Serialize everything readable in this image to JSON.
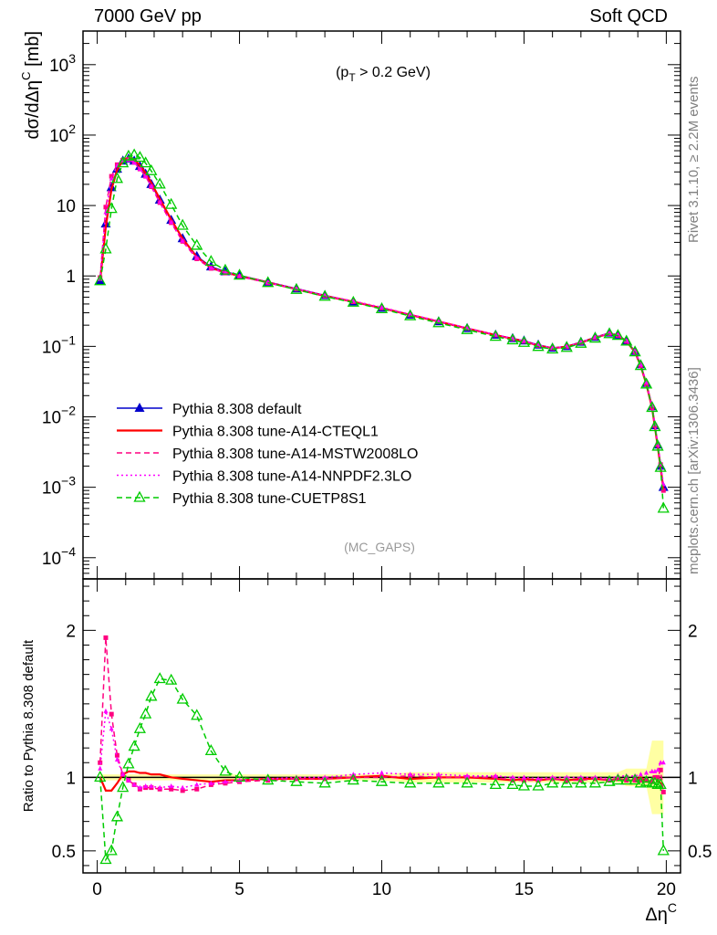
{
  "header": {
    "left": "7000 GeV pp",
    "right": "Soft QCD"
  },
  "side_text": {
    "upper": "Rivet 3.1.10, ≥ 2.2M events",
    "lower": "mcplots.cern.ch [arXiv:1306.3436]"
  },
  "chart_data": [
    {
      "type": "line",
      "title": "",
      "annotation": "(p_T > 0.2 GeV)",
      "analysis_label": "(MC_GAPS)",
      "ylabel": "dσ/dΔη^C [mb]",
      "yscale": "log",
      "ylim": [
        5e-05,
        3000
      ],
      "xlim": [
        -0.5,
        20.5
      ],
      "x_ticks": [
        0,
        5,
        10,
        15,
        20
      ],
      "y_ticks": [
        "10^-4",
        "10^-3",
        "10^-2",
        "10^-1",
        "1",
        "10",
        "10^2",
        "10^3"
      ],
      "legend_position": "lower-left",
      "x": [
        0.1,
        0.3,
        0.5,
        0.7,
        0.9,
        1.1,
        1.3,
        1.5,
        1.7,
        1.9,
        2.2,
        2.6,
        3.0,
        3.5,
        4.0,
        4.5,
        5.0,
        6.0,
        7.0,
        8.0,
        9.0,
        10.0,
        11.0,
        12.0,
        13.0,
        14.0,
        14.6,
        15.0,
        15.5,
        16.0,
        16.5,
        17.0,
        17.5,
        18.0,
        18.3,
        18.6,
        18.9,
        19.1,
        19.3,
        19.5,
        19.6,
        19.7,
        19.8,
        19.9
      ],
      "series": [
        {
          "name": "Pythia 8.308 default",
          "color": "#0000cc",
          "style": "solid",
          "marker": "filled-triangle",
          "values": [
            0.85,
            5.5,
            18,
            33,
            43,
            46,
            43,
            36,
            28,
            20,
            12,
            6.2,
            3.4,
            1.9,
            1.35,
            1.15,
            1.02,
            0.82,
            0.66,
            0.53,
            0.43,
            0.35,
            0.28,
            0.225,
            0.18,
            0.145,
            0.13,
            0.12,
            0.105,
            0.095,
            0.1,
            0.115,
            0.135,
            0.155,
            0.145,
            0.12,
            0.085,
            0.055,
            0.03,
            0.014,
            0.0075,
            0.004,
            0.002,
            0.001
          ]
        },
        {
          "name": "Pythia 8.308 tune-A14-CTEQL1",
          "color": "#ff0000",
          "style": "solid",
          "marker": "none",
          "values": [
            0.85,
            5.0,
            17,
            32,
            44,
            48,
            45,
            37,
            29,
            21,
            12.4,
            6.3,
            3.4,
            1.85,
            1.3,
            1.12,
            1.0,
            0.81,
            0.65,
            0.52,
            0.43,
            0.35,
            0.28,
            0.225,
            0.18,
            0.145,
            0.128,
            0.118,
            0.103,
            0.094,
            0.099,
            0.113,
            0.133,
            0.152,
            0.143,
            0.118,
            0.083,
            0.053,
            0.029,
            0.0135,
            0.0072,
            0.0038,
            0.0019,
            0.00095
          ]
        },
        {
          "name": "Pythia 8.308 tune-A14-MSTW2008LO",
          "color": "#ff0080",
          "style": "dashed",
          "marker": "small-square",
          "values": [
            0.95,
            9.5,
            26,
            38,
            44,
            45,
            41,
            33,
            26,
            18.5,
            11,
            5.7,
            3.1,
            1.75,
            1.28,
            1.1,
            0.98,
            0.8,
            0.65,
            0.52,
            0.43,
            0.35,
            0.28,
            0.225,
            0.18,
            0.145,
            0.128,
            0.118,
            0.103,
            0.094,
            0.099,
            0.113,
            0.133,
            0.152,
            0.143,
            0.118,
            0.083,
            0.053,
            0.029,
            0.0135,
            0.0075,
            0.004,
            0.0021,
            0.0009
          ]
        },
        {
          "name": "Pythia 8.308 tune-A14-NNPDF2.3LO",
          "color": "#ff00ff",
          "style": "dotted",
          "marker": "small-triangle",
          "values": [
            0.9,
            8.0,
            24,
            37,
            44,
            45,
            41,
            33,
            26,
            18.8,
            11.2,
            5.8,
            3.15,
            1.8,
            1.3,
            1.12,
            1.0,
            0.81,
            0.66,
            0.53,
            0.44,
            0.36,
            0.285,
            0.23,
            0.182,
            0.147,
            0.13,
            0.12,
            0.104,
            0.095,
            0.1,
            0.115,
            0.135,
            0.154,
            0.146,
            0.121,
            0.086,
            0.056,
            0.031,
            0.0145,
            0.0078,
            0.0042,
            0.0022,
            0.0011
          ]
        },
        {
          "name": "Pythia 8.308 tune-CUETP8S1",
          "color": "#00cc00",
          "style": "dashed",
          "marker": "open-triangle",
          "values": [
            0.85,
            2.4,
            9.0,
            24,
            40,
            50,
            52,
            48,
            40,
            31,
            20,
            10.3,
            5.2,
            2.7,
            1.6,
            1.2,
            1.02,
            0.8,
            0.64,
            0.51,
            0.42,
            0.34,
            0.27,
            0.215,
            0.172,
            0.138,
            0.123,
            0.113,
            0.099,
            0.091,
            0.096,
            0.11,
            0.13,
            0.15,
            0.142,
            0.118,
            0.083,
            0.053,
            0.029,
            0.0135,
            0.0072,
            0.0038,
            0.0019,
            0.0005
          ]
        }
      ]
    },
    {
      "type": "line",
      "title": "",
      "ylabel": "Ratio to Pythia 8.308 default",
      "xlabel": "Δη^C",
      "ylim": [
        0.35,
        2.35
      ],
      "xlim": [
        -0.5,
        20.5
      ],
      "x_ticks": [
        0,
        5,
        10,
        15,
        20
      ],
      "y_ticks": [
        0.5,
        1,
        2
      ],
      "x": [
        0.1,
        0.3,
        0.5,
        0.7,
        0.9,
        1.1,
        1.3,
        1.5,
        1.7,
        1.9,
        2.2,
        2.6,
        3.0,
        3.5,
        4.0,
        4.5,
        5.0,
        6.0,
        7.0,
        8.0,
        9.0,
        10.0,
        11.0,
        12.0,
        13.0,
        14.0,
        14.6,
        15.0,
        15.5,
        16.0,
        16.5,
        17.0,
        17.5,
        18.0,
        18.3,
        18.6,
        18.9,
        19.1,
        19.3,
        19.5,
        19.6,
        19.7,
        19.8,
        19.9
      ],
      "series": [
        {
          "name": "Pythia 8.308 default",
          "color": "#000000",
          "values": [
            1,
            1,
            1,
            1,
            1,
            1,
            1,
            1,
            1,
            1,
            1,
            1,
            1,
            1,
            1,
            1,
            1,
            1,
            1,
            1,
            1,
            1,
            1,
            1,
            1,
            1,
            1,
            1,
            1,
            1,
            1,
            1,
            1,
            1,
            1,
            1,
            1,
            1,
            1,
            1,
            1,
            1,
            1,
            1
          ]
        },
        {
          "name": "Pythia 8.308 tune-A14-CTEQL1",
          "color": "#ff0000",
          "values": [
            1.0,
            0.91,
            0.91,
            0.96,
            1.02,
            1.04,
            1.04,
            1.03,
            1.03,
            1.02,
            1.02,
            1.0,
            0.99,
            0.98,
            0.97,
            0.98,
            0.98,
            0.99,
            0.99,
            0.99,
            1.0,
            1.01,
            0.99,
            1.0,
            1.0,
            0.99,
            0.98,
            0.99,
            0.98,
            0.99,
            0.98,
            0.99,
            0.99,
            0.98,
            0.99,
            0.98,
            0.98,
            1.0,
            0.97,
            0.97,
            1.0,
            0.98,
            0.96,
            0.95
          ]
        },
        {
          "name": "Pythia 8.308 tune-A14-MSTW2008LO",
          "color": "#ff0080",
          "values": [
            1.1,
            1.95,
            1.43,
            1.15,
            1.02,
            0.98,
            0.95,
            0.92,
            0.93,
            0.93,
            0.92,
            0.92,
            0.91,
            0.92,
            0.95,
            0.96,
            0.97,
            0.98,
            0.99,
            0.99,
            1.0,
            1.0,
            1.01,
            1.0,
            1.0,
            1.0,
            0.98,
            0.98,
            0.98,
            0.99,
            0.98,
            0.98,
            0.99,
            0.98,
            0.99,
            0.98,
            0.98,
            0.98,
            0.98,
            0.97,
            1.0,
            1.0,
            1.05,
            0.9
          ]
        },
        {
          "name": "Pythia 8.308 tune-A14-NNPDF2.3LO",
          "color": "#ff00ff",
          "values": [
            1.06,
            1.45,
            1.33,
            1.12,
            1.02,
            0.98,
            0.95,
            0.93,
            0.94,
            0.94,
            0.93,
            0.94,
            0.93,
            0.95,
            0.96,
            0.97,
            0.98,
            0.99,
            1.0,
            1.0,
            1.02,
            1.03,
            1.02,
            1.02,
            1.01,
            1.01,
            1.0,
            1.0,
            0.99,
            1.0,
            1.0,
            1.0,
            1.0,
            0.99,
            1.01,
            1.01,
            1.01,
            1.02,
            1.03,
            1.04,
            1.04,
            1.05,
            1.1,
            1.1
          ]
        },
        {
          "name": "Pythia 8.308 tune-CUETP8S1",
          "color": "#00cc00",
          "values": [
            1.0,
            0.44,
            0.5,
            0.73,
            0.93,
            1.09,
            1.21,
            1.33,
            1.43,
            1.55,
            1.67,
            1.66,
            1.53,
            1.42,
            1.18,
            1.04,
            1.0,
            0.98,
            0.97,
            0.96,
            0.98,
            0.97,
            0.96,
            0.96,
            0.96,
            0.95,
            0.95,
            0.94,
            0.94,
            0.96,
            0.96,
            0.96,
            0.96,
            0.97,
            0.98,
            0.98,
            0.98,
            0.96,
            0.97,
            0.96,
            0.96,
            0.95,
            0.95,
            0.5
          ]
        }
      ]
    }
  ]
}
